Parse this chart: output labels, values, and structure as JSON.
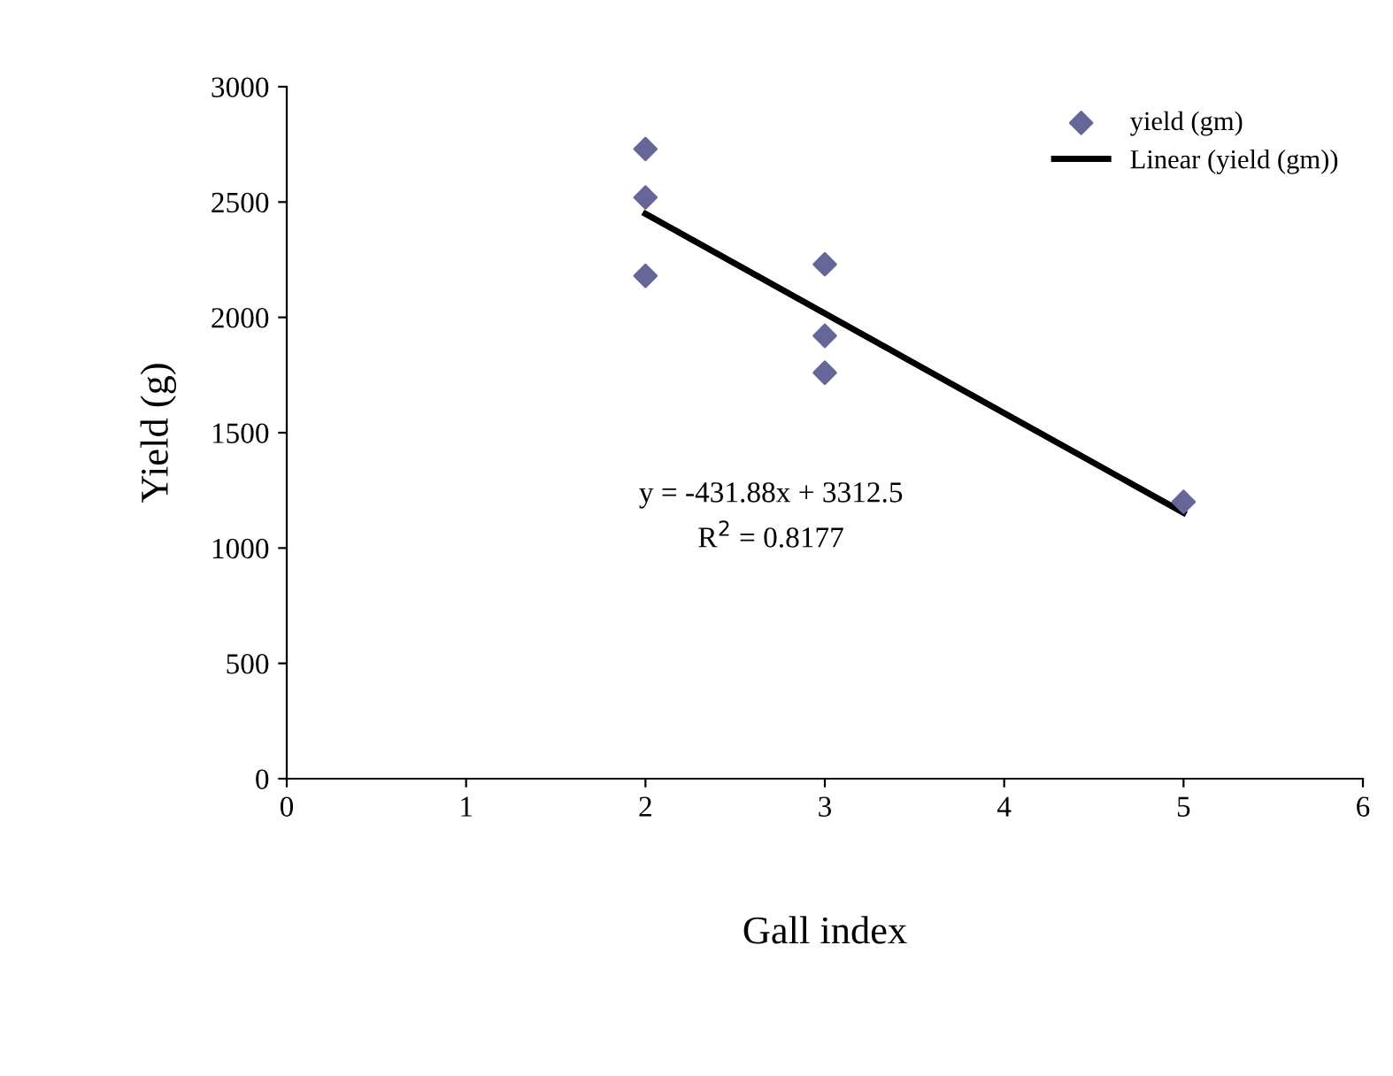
{
  "chart_data": {
    "type": "scatter",
    "xlabel": "Gall index",
    "ylabel": "Yield (g)",
    "xlim": [
      0,
      6
    ],
    "xticks": [
      0,
      1,
      2,
      3,
      4,
      5,
      6
    ],
    "ylim": [
      0,
      3000
    ],
    "yticks": [
      0,
      500,
      1000,
      1500,
      2000,
      2500,
      3000
    ],
    "series": [
      {
        "name": "yield (gm)",
        "color": "#666699",
        "marker": "diamond",
        "x": [
          2,
          2,
          2,
          3,
          3,
          3,
          5
        ],
        "values": [
          2730,
          2520,
          2180,
          2230,
          1920,
          1760,
          1200
        ]
      },
      {
        "name": "Linear (yield (gm))",
        "type": "line",
        "color": "#000000",
        "marker": "none",
        "line_style": "solid",
        "x": [
          2,
          5
        ],
        "values": [
          2449,
          1153
        ]
      }
    ],
    "annotations": [
      "y = -431.88x + 3312.5",
      "R$^{2}$ = 0.8177"
    ],
    "legend": "top right",
    "grid": false
  }
}
